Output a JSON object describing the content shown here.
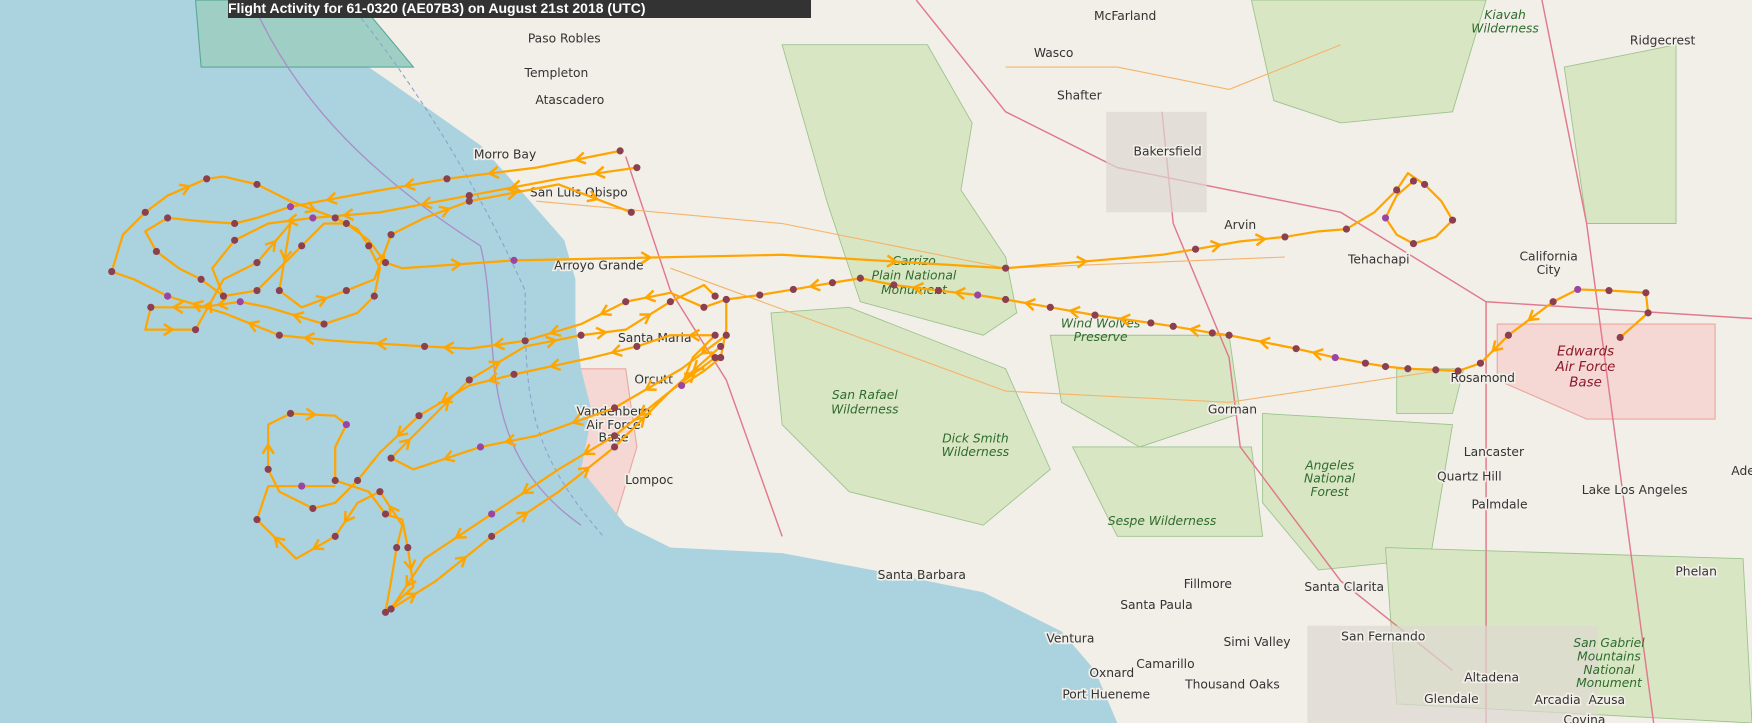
{
  "title": "Flight Activity for 61-0320 (AE07B3) on August 21st 2018 (UTC)",
  "colors": {
    "ocean": "#aad3df",
    "land": "#f2efe9",
    "park": "#d9e6c3",
    "track": "#ffa500",
    "point": "#8b3f4f",
    "point_alt": "#9b44a0",
    "military": "#f5d7d3"
  },
  "places": [
    "Paso Robles",
    "Templeton",
    "Atascadero",
    "Morro Bay",
    "San Luis Obispo",
    "Arroyo Grande",
    "Santa Maria",
    "Orcutt",
    "Vandenberg",
    "Air Force",
    "Base",
    "Lompoc",
    "Santa Barbara",
    "Ventura",
    "Oxnard",
    "Camarillo",
    "Port Hueneme",
    "Thousand Oaks",
    "Simi Valley",
    "Santa Paula",
    "Fillmore",
    "Santa Clarita",
    "San Fernando",
    "Glendale",
    "Altadena",
    "Arcadia",
    "Azusa",
    "Covina",
    "Palmdale",
    "Lancaster",
    "Quartz Hill",
    "Lake Los Angeles",
    "Phelan",
    "Rosamond",
    "California",
    "City",
    "Tehachapi",
    "Arvin",
    "Bakersfield",
    "Shafter",
    "Wasco",
    "McFarland",
    "Ridgecrest",
    "Gorman",
    "Ade"
  ],
  "parks": [
    "Kiavah",
    "Wilderness",
    "Carrizo",
    "Plain National",
    "Monument",
    "Wind Wolves",
    "Preserve",
    "San Rafael",
    "Wilderness",
    "Dick Smith",
    "Wilderness",
    "Angeles",
    "National",
    "Forest",
    "Sespe Wilderness",
    "San Gabriel",
    "Mountains",
    "National",
    "Monument"
  ],
  "military": [
    "Edwards",
    "Air Force",
    "Base"
  ]
}
